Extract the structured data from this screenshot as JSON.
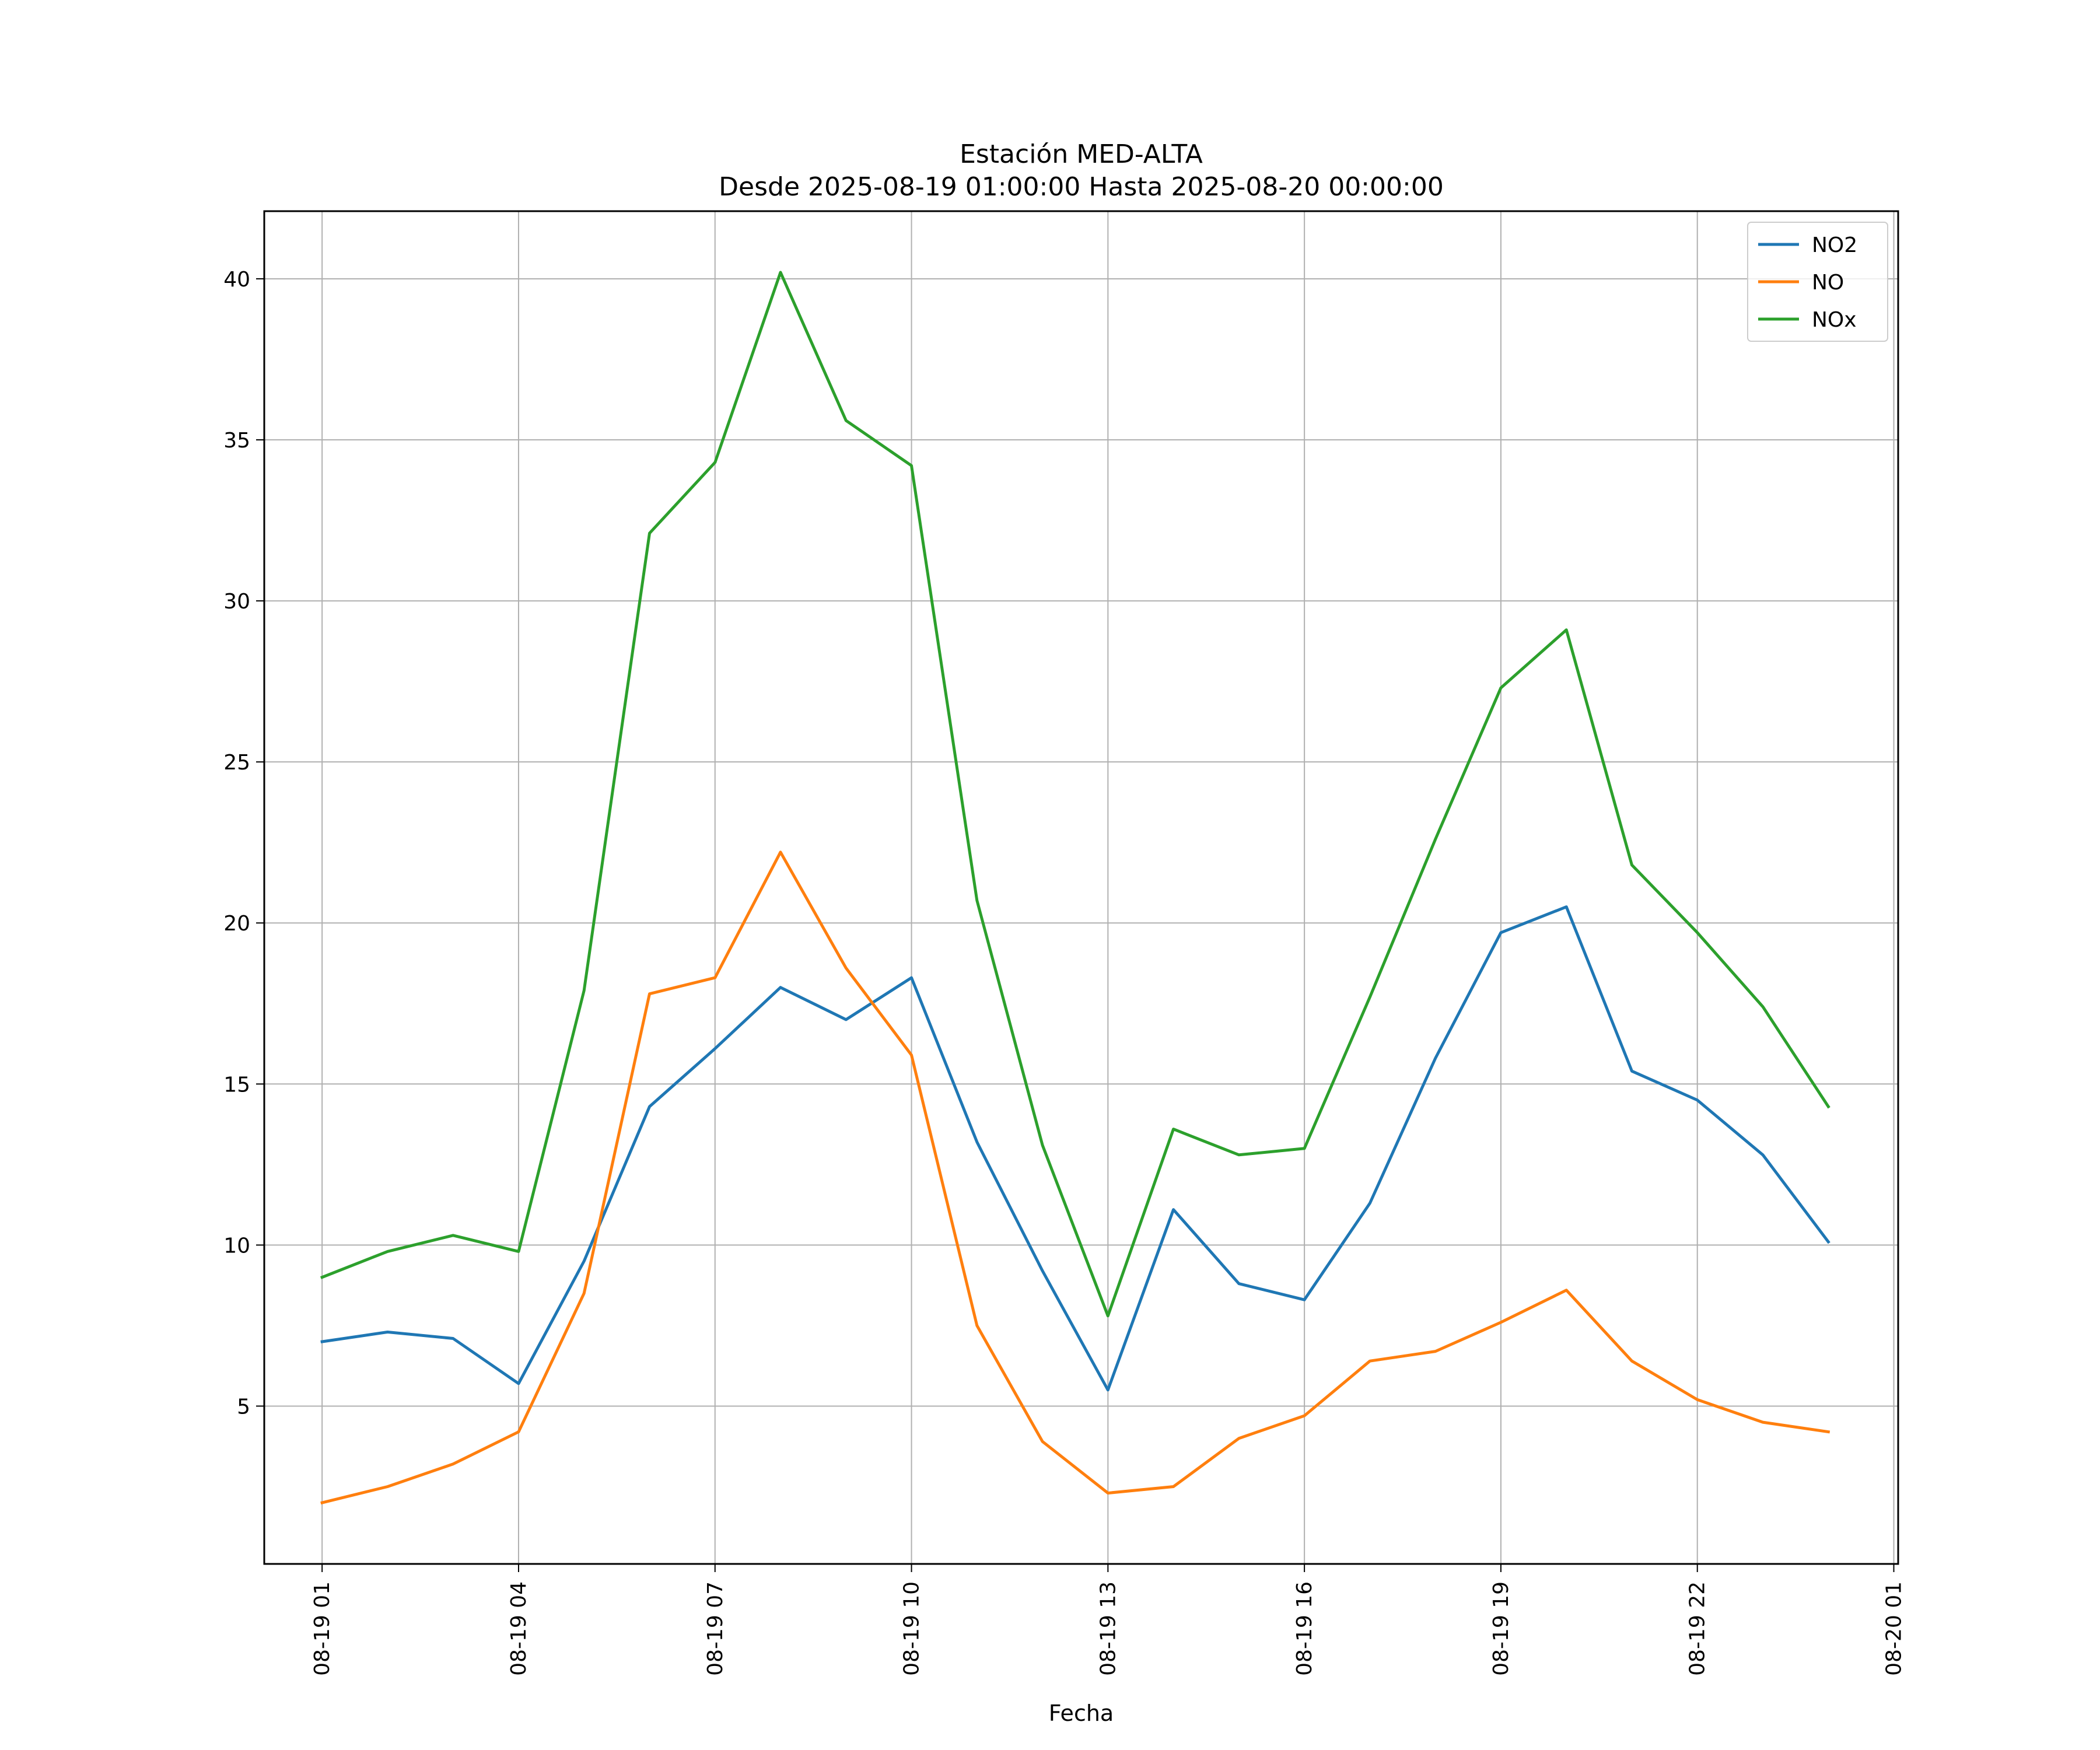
{
  "chart_data": {
    "type": "line",
    "title": "Estación MED-ALTA",
    "subtitle": "Desde 2025-08-19 01:00:00 Hasta 2025-08-20 00:00:00",
    "xlabel": "Fecha",
    "ylabel": "",
    "x": [
      "2025-08-19 01:00",
      "2025-08-19 02:00",
      "2025-08-19 03:00",
      "2025-08-19 04:00",
      "2025-08-19 05:00",
      "2025-08-19 06:00",
      "2025-08-19 07:00",
      "2025-08-19 08:00",
      "2025-08-19 09:00",
      "2025-08-19 10:00",
      "2025-08-19 11:00",
      "2025-08-19 12:00",
      "2025-08-19 13:00",
      "2025-08-19 14:00",
      "2025-08-19 15:00",
      "2025-08-19 16:00",
      "2025-08-19 17:00",
      "2025-08-19 18:00",
      "2025-08-19 19:00",
      "2025-08-19 20:00",
      "2025-08-19 21:00",
      "2025-08-19 22:00",
      "2025-08-19 23:00",
      "2025-08-20 00:00"
    ],
    "x_ticks": [
      "2025-08-19 01:00",
      "2025-08-19 04:00",
      "2025-08-19 07:00",
      "2025-08-19 10:00",
      "2025-08-19 13:00",
      "2025-08-19 16:00",
      "2025-08-19 19:00",
      "2025-08-19 22:00",
      "2025-08-20 01:00"
    ],
    "x_tick_labels": [
      "08-19 01",
      "08-19 04",
      "08-19 07",
      "08-19 10",
      "08-19 13",
      "08-19 16",
      "08-19 19",
      "08-19 22",
      "08-20 01"
    ],
    "xlim": [
      "2025-08-19 00:07",
      "2025-08-20 01:04"
    ],
    "y_ticks": [
      5,
      10,
      15,
      20,
      25,
      30,
      35,
      40
    ],
    "y_tick_labels": [
      "5",
      "10",
      "15",
      "20",
      "25",
      "30",
      "35",
      "40"
    ],
    "ylim": [
      0.1,
      42.1
    ],
    "grid": true,
    "legend_position": "top-right",
    "series": [
      {
        "name": "NO2",
        "color": "#1f77b4",
        "values": [
          7.0,
          7.3,
          7.1,
          5.7,
          9.5,
          14.3,
          16.1,
          18.0,
          17.0,
          18.3,
          13.2,
          9.2,
          5.5,
          11.1,
          8.8,
          8.3,
          11.3,
          15.8,
          19.7,
          20.5,
          15.4,
          14.5,
          12.8,
          10.1
        ]
      },
      {
        "name": "NO",
        "color": "#ff7f0e",
        "values": [
          2.0,
          2.5,
          3.2,
          4.2,
          8.5,
          17.8,
          18.3,
          22.2,
          18.6,
          15.9,
          7.5,
          3.9,
          2.3,
          2.5,
          4.0,
          4.7,
          6.4,
          6.7,
          7.6,
          8.6,
          6.4,
          5.2,
          4.5,
          4.2
        ]
      },
      {
        "name": "NOx",
        "color": "#2ca02c",
        "values": [
          9.0,
          9.8,
          10.3,
          9.8,
          17.9,
          32.1,
          34.3,
          40.2,
          35.6,
          34.2,
          20.7,
          13.1,
          7.8,
          13.6,
          12.8,
          13.0,
          17.7,
          22.6,
          27.3,
          29.1,
          21.8,
          19.7,
          17.4,
          14.3
        ]
      }
    ]
  }
}
